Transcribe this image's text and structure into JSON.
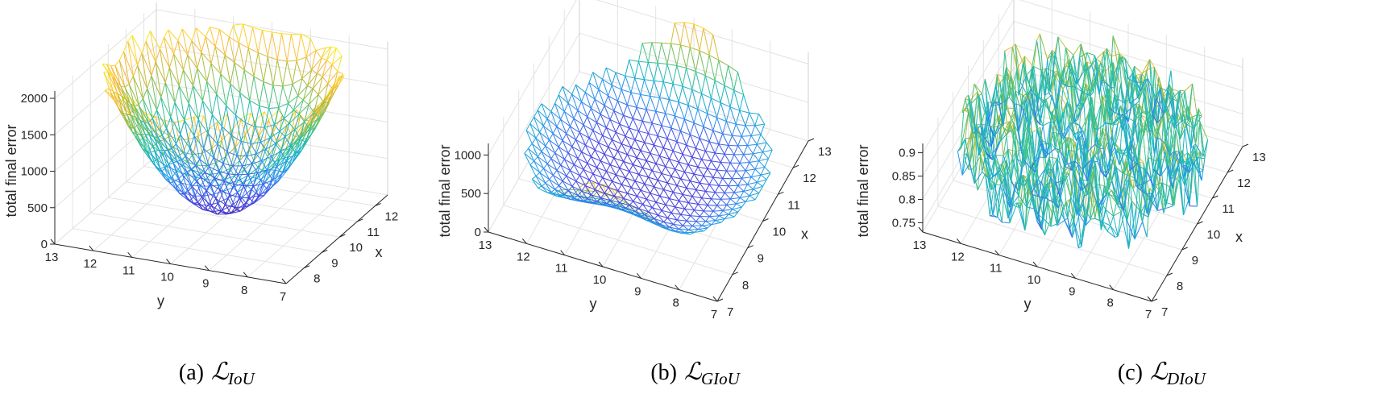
{
  "colors": {
    "colormap": [
      "#3e26a8",
      "#4743e3",
      "#2d8ff0",
      "#17b3c9",
      "#3cc38c",
      "#a8bd3a",
      "#fcbb3d",
      "#f9fb15"
    ],
    "axis": "#262626",
    "grid": "#e3e3e3"
  },
  "chart_data": [
    {
      "type": "surface",
      "panel_label": "(a)",
      "loss_symbol": "ℒ",
      "loss_subscript": "IoU",
      "zlabel": "total final error",
      "xlabel": "x",
      "ylabel": "y",
      "xlim": [
        7,
        12.7
      ],
      "ylim": [
        7,
        13
      ],
      "zlim": [
        0,
        2100
      ],
      "x_ticks": [
        8,
        9,
        10,
        11,
        12
      ],
      "y_ticks": [
        7,
        8,
        9,
        10,
        11,
        12,
        13
      ],
      "z_ticks": [
        0,
        500,
        1000,
        1500,
        2000
      ],
      "surface_model": "single deep bowl centred near (x=10, y=10); ~150 at centre, ~1950-2050 at rim",
      "grid": true
    },
    {
      "type": "surface",
      "panel_label": "(b)",
      "loss_symbol": "ℒ",
      "loss_subscript": "GIoU",
      "zlabel": "total final error",
      "xlabel": "x",
      "ylabel": "y",
      "xlim": [
        7,
        13
      ],
      "ylim": [
        7,
        13
      ],
      "zlim": [
        0,
        1150
      ],
      "x_ticks": [
        7,
        8,
        9,
        10,
        11,
        12,
        13
      ],
      "y_ticks": [
        7,
        8,
        9,
        10,
        11,
        12,
        13
      ],
      "z_ticks": [
        0,
        500,
        1000
      ],
      "surface_model": "flat floor ~100-200 with raised crescent lobes along the circular rim, peaks ~1100",
      "grid": true
    },
    {
      "type": "surface",
      "panel_label": "(c)",
      "loss_symbol": "ℒ",
      "loss_subscript": "DIoU",
      "zlabel": "total final error",
      "xlabel": "x",
      "ylabel": "y",
      "xlim": [
        7,
        13
      ],
      "ylim": [
        7,
        13
      ],
      "zlim": [
        0.73,
        0.92
      ],
      "x_ticks": [
        7,
        8,
        9,
        10,
        11,
        12,
        13
      ],
      "y_ticks": [
        7,
        8,
        9,
        10,
        11,
        12,
        13
      ],
      "z_ticks": [
        0.75,
        0.8,
        0.85,
        0.9
      ],
      "z_tick_labels": [
        "0.75",
        "0.8",
        "0.85",
        "0.9"
      ],
      "surface_model": "noisy plateau fluctuating between ~0.76 and ~0.9 across the whole disk",
      "grid": true
    }
  ]
}
